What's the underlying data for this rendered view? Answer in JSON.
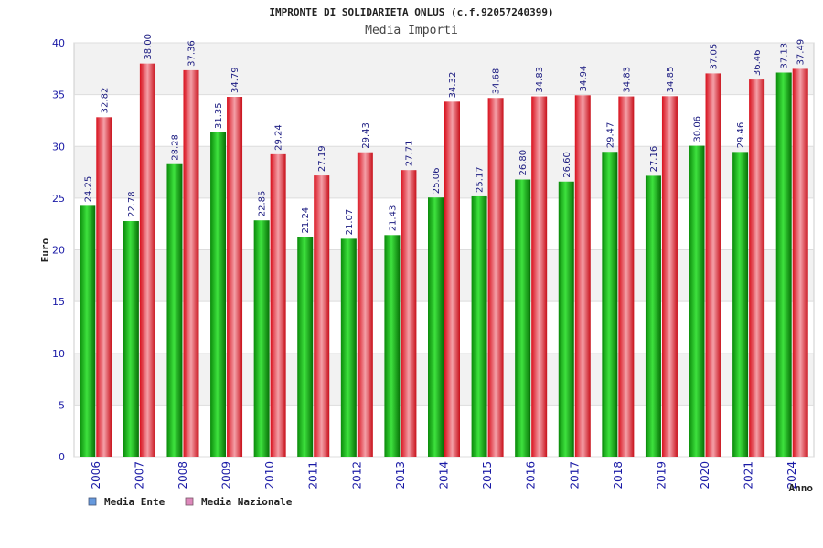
{
  "chart_data": {
    "type": "bar",
    "title": "IMPRONTE DI SOLIDARIETA ONLUS (c.f.92057240399)",
    "subtitle": "Media Importi",
    "xlabel": "Anno",
    "ylabel": "Euro",
    "ylim": [
      0,
      40
    ],
    "yticks": [
      "0",
      "5",
      "10",
      "15",
      "20",
      "25",
      "30",
      "35",
      "40"
    ],
    "grid": true,
    "legend_position": "bottom-left",
    "categories": [
      "2006",
      "2007",
      "2008",
      "2009",
      "2010",
      "2011",
      "2012",
      "2013",
      "2014",
      "2015",
      "2016",
      "2017",
      "2018",
      "2019",
      "2020",
      "2021",
      "2024"
    ],
    "series": [
      {
        "name": "Media Ente",
        "legend_color": "#6699dd",
        "bar_color": "#10b010",
        "values": [
          24.25,
          22.78,
          28.28,
          31.35,
          22.85,
          21.24,
          21.07,
          21.43,
          25.06,
          25.17,
          26.8,
          26.6,
          29.47,
          27.16,
          30.06,
          29.46,
          37.13
        ],
        "labels": [
          "24.25",
          "22.78",
          "28.28",
          "31.35",
          "22.85",
          "21.24",
          "21.07",
          "21.43",
          "25.06",
          "25.17",
          "26.80",
          "26.60",
          "29.47",
          "27.16",
          "30.06",
          "29.46",
          "37.13"
        ]
      },
      {
        "name": "Media Nazionale",
        "legend_color": "#dd88bb",
        "bar_color": "#e8303c",
        "values": [
          32.82,
          38.0,
          37.36,
          34.79,
          29.24,
          27.19,
          29.43,
          27.71,
          34.32,
          34.68,
          34.83,
          34.94,
          34.83,
          34.85,
          37.05,
          36.46,
          37.49
        ],
        "labels": [
          "32.82",
          "38.00",
          "37.36",
          "34.79",
          "29.24",
          "27.19",
          "29.43",
          "27.71",
          "34.32",
          "34.68",
          "34.83",
          "34.94",
          "34.83",
          "34.85",
          "37.05",
          "36.46",
          "37.49"
        ]
      }
    ]
  }
}
